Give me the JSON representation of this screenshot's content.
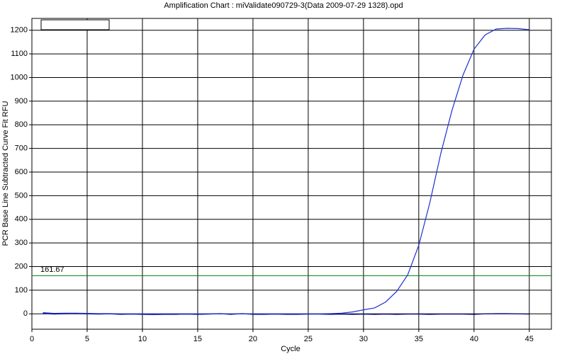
{
  "chart_data": {
    "type": "line",
    "title": "Amplification Chart : miValidate090729-3(Data 2009-07-29 1328).opd",
    "xlabel": "Cycle",
    "ylabel": "PCR Base Line Subtracted Curve Fit RFU",
    "x": [
      1,
      2,
      3,
      4,
      5,
      6,
      7,
      8,
      9,
      10,
      11,
      12,
      13,
      14,
      15,
      16,
      17,
      18,
      19,
      20,
      21,
      22,
      23,
      24,
      25,
      26,
      27,
      28,
      29,
      30,
      31,
      32,
      33,
      34,
      35,
      36,
      37,
      38,
      39,
      40,
      41,
      42,
      43,
      44,
      45
    ],
    "series": [
      {
        "color": "#1f2fd0",
        "values": [
          5,
          2,
          3,
          3,
          2,
          1,
          1,
          0,
          0,
          0,
          0,
          0,
          0,
          0,
          0,
          0,
          0,
          0,
          0,
          0,
          0,
          0,
          0,
          0,
          0,
          0,
          1,
          3,
          8,
          17,
          25,
          50,
          95,
          165,
          290,
          470,
          680,
          860,
          1010,
          1120,
          1180,
          1205,
          1208,
          1207,
          1202
        ]
      },
      {
        "color": "#000080",
        "values": [
          3,
          -1,
          1,
          2,
          0,
          -1,
          0,
          -2,
          -1,
          -2,
          -3,
          -2,
          -2,
          -1,
          -2,
          -1,
          1,
          -2,
          1,
          -2,
          -2,
          -1,
          -2,
          -2,
          -1,
          -1,
          -2,
          -1,
          -2,
          -1,
          -2,
          -1,
          -2,
          -1,
          -1,
          -2,
          -1,
          -1,
          -1,
          -2,
          0,
          1,
          1,
          0,
          -1
        ]
      }
    ],
    "threshold": 161.67,
    "threshold_color": "#008000",
    "xlim": [
      0,
      47
    ],
    "ylim": [
      -65,
      1250
    ],
    "xticks": [
      0,
      5,
      10,
      15,
      20,
      25,
      30,
      35,
      40,
      45
    ],
    "yticks": [
      0,
      100,
      200,
      300,
      400,
      500,
      600,
      700,
      800,
      900,
      1000,
      1100,
      1200
    ],
    "grid": true
  }
}
